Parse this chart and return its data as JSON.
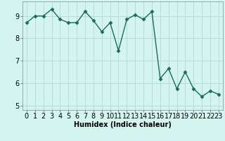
{
  "x": [
    0,
    1,
    2,
    3,
    4,
    5,
    6,
    7,
    8,
    9,
    10,
    11,
    12,
    13,
    14,
    15,
    16,
    17,
    18,
    19,
    20,
    21,
    22,
    23
  ],
  "y": [
    8.7,
    9.0,
    9.0,
    9.3,
    8.85,
    8.7,
    8.7,
    9.2,
    8.8,
    8.3,
    8.7,
    7.45,
    8.85,
    9.05,
    8.85,
    9.2,
    6.2,
    6.65,
    5.75,
    6.5,
    5.75,
    5.4,
    5.65,
    5.5
  ],
  "line_color": "#1a6b5a",
  "marker": "D",
  "marker_size": 2.5,
  "bg_color": "#d4f5ef",
  "grid_color": "#b8ddd7",
  "xlabel": "Humidex (Indice chaleur)",
  "xlabel_fontsize": 7,
  "tick_fontsize": 7,
  "ylim": [
    4.8,
    9.65
  ],
  "xlim": [
    -0.5,
    23.5
  ],
  "yticks": [
    5,
    6,
    7,
    8,
    9
  ],
  "xticks": [
    0,
    1,
    2,
    3,
    4,
    5,
    6,
    7,
    8,
    9,
    10,
    11,
    12,
    13,
    14,
    15,
    16,
    17,
    18,
    19,
    20,
    21,
    22,
    23
  ]
}
